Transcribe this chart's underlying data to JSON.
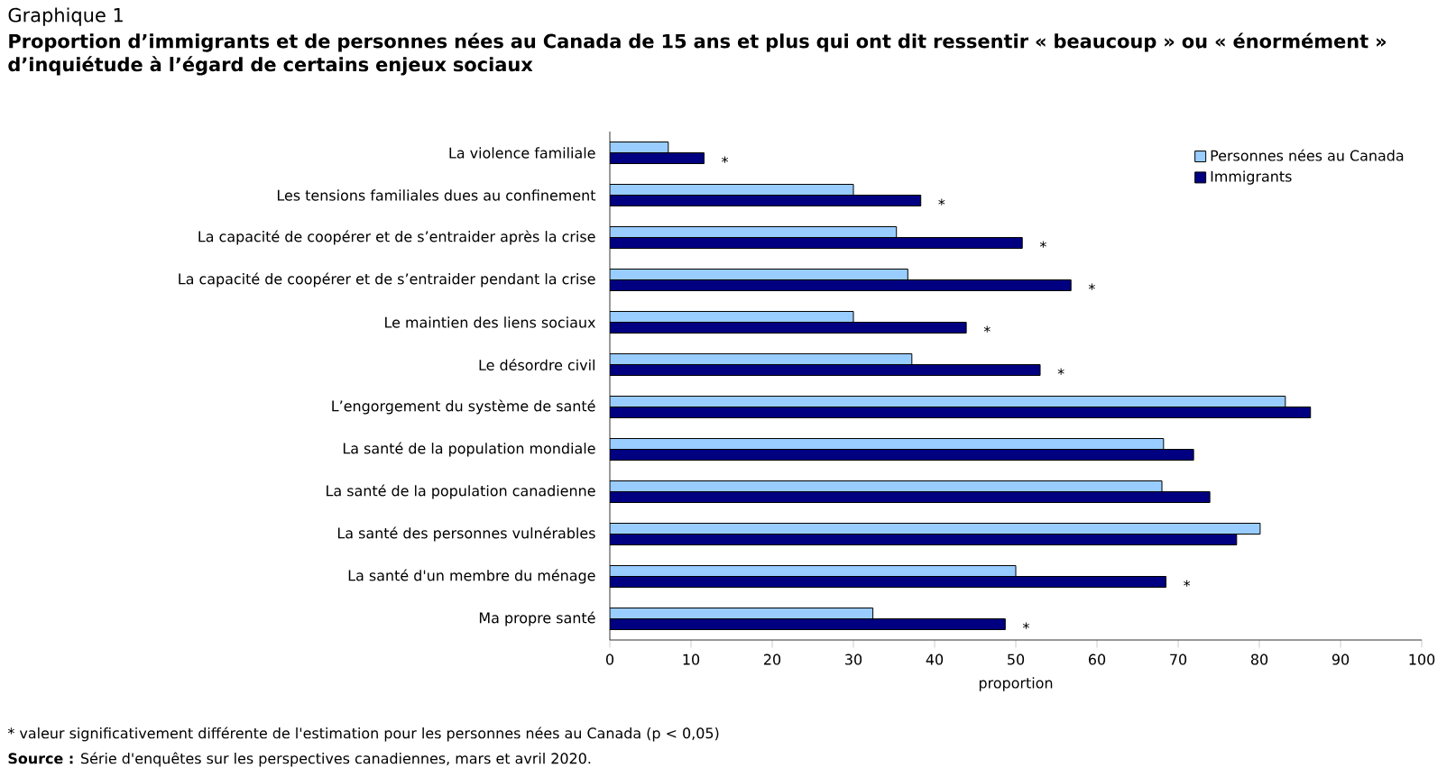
{
  "chart_data": {
    "type": "bar",
    "orientation": "horizontal",
    "title": "Graphique 1",
    "subtitle": "Proportion d’immigrants et de personnes nées au Canada de 15 ans et plus qui ont dit ressentir « beaucoup » ou « énormément » d’inquiétude à l’égard de certains enjeux sociaux",
    "categories": [
      "La violence familiale",
      "Les tensions familiales dues au confinement",
      "La capacité de coopérer et de s’entraider après la crise",
      "La capacité de coopérer et de s’entraider pendant la crise",
      "Le maintien des liens sociaux",
      "Le désordre civil",
      "L’engorgement du système de santé",
      "La santé de la population mondiale",
      "La santé de la population canadienne",
      "La santé des personnes vulnérables",
      "La santé d'un membre du ménage",
      "Ma propre santé"
    ],
    "series": [
      {
        "name": "Personnes nées au Canada",
        "color": "#99ccff",
        "values": [
          7.2,
          30.0,
          35.3,
          36.7,
          30.0,
          37.2,
          83.2,
          68.2,
          68.0,
          80.1,
          50.0,
          32.4
        ]
      },
      {
        "name": "Immigrants",
        "color": "#000080",
        "values": [
          11.6,
          38.3,
          50.8,
          56.8,
          43.9,
          53.0,
          86.3,
          71.9,
          73.9,
          77.2,
          68.5,
          48.7
        ],
        "value_labels": [
          "*",
          "*",
          "*",
          "*",
          "*",
          "*",
          null,
          null,
          null,
          null,
          "*",
          "*"
        ]
      }
    ],
    "xlabel": "proportion",
    "xlim": [
      0,
      100
    ],
    "xticks": [
      0,
      10,
      20,
      30,
      40,
      50,
      60,
      70,
      80,
      90,
      100
    ],
    "legend": "top right",
    "grid": false,
    "annotations": [
      "* valeur significativement différente de l'estimation pour les personnes nées au Canada (p < 0,05)",
      "**Source :** Série d'enquêtes sur les perspectives canadiennes, mars et avril 2020."
    ]
  }
}
